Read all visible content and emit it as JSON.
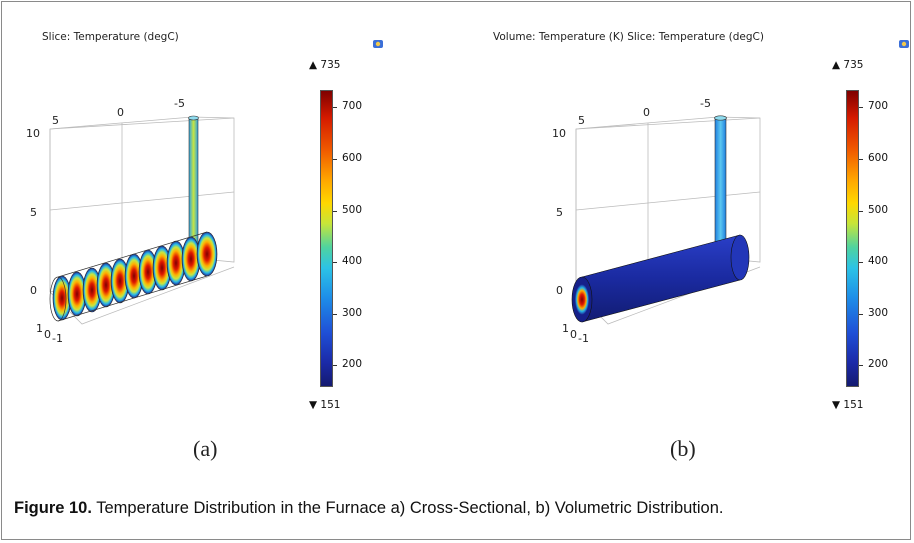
{
  "panels": [
    {
      "id": "a",
      "title": "Slice: Temperature (degC)",
      "label": "(a)",
      "axis_ticks": {
        "x_top": [
          "5",
          "0",
          "-5"
        ],
        "z": [
          "10",
          "5",
          "0"
        ],
        "y": [
          "1",
          "0",
          "-1"
        ]
      },
      "colorbar": {
        "max_label": "▲ 735",
        "min_label": "▼ 151",
        "ticks": [
          "700",
          "600",
          "500",
          "400",
          "300",
          "200"
        ]
      }
    },
    {
      "id": "b",
      "title": "Volume: Temperature (K)  Slice: Temperature (degC)",
      "label": "(b)",
      "axis_ticks": {
        "x_top": [
          "5",
          "0",
          "-5"
        ],
        "z": [
          "10",
          "5",
          "0"
        ],
        "y": [
          "1",
          "0",
          "-1"
        ]
      },
      "colorbar": {
        "max_label": "▲ 735",
        "min_label": "▼ 151",
        "ticks": [
          "700",
          "600",
          "500",
          "400",
          "300",
          "200"
        ]
      }
    }
  ],
  "colorbar_range": [
    151,
    735
  ],
  "icons": {
    "camera": "camera-icon"
  },
  "caption": {
    "figure_label": "Figure 10.",
    "text": " Temperature Distribution in the Furnace a) Cross-Sectional, b) Volumetric Distribution."
  }
}
